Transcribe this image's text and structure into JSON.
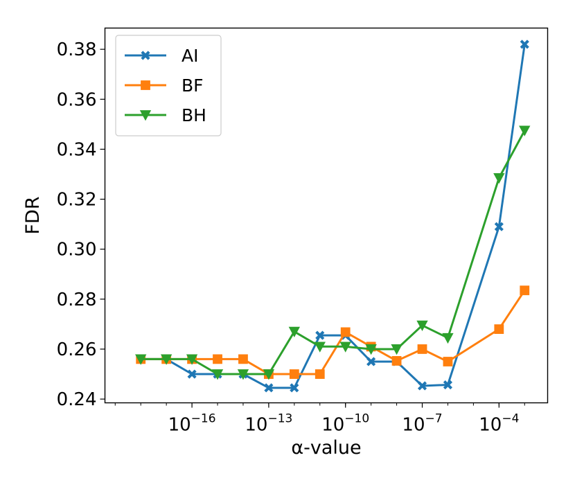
{
  "chart_data": {
    "type": "line",
    "title": "",
    "xlabel": "α-value",
    "ylabel": "FDR",
    "xscale": "log10",
    "xlim_log10": [
      -19.4,
      -2.1
    ],
    "ylim": [
      0.2385,
      0.3885
    ],
    "yticks": [
      0.24,
      0.26,
      0.28,
      0.3,
      0.32,
      0.34,
      0.36,
      0.38
    ],
    "ytick_labels": [
      "0.24",
      "0.26",
      "0.28",
      "0.30",
      "0.32",
      "0.34",
      "0.36",
      "0.38"
    ],
    "xticks": [
      {
        "base": "10",
        "exp": "−16",
        "log10": -16
      },
      {
        "base": "10",
        "exp": "−13",
        "log10": -13
      },
      {
        "base": "10",
        "exp": "−10",
        "log10": -10
      },
      {
        "base": "10",
        "exp": "−7",
        "log10": -7
      },
      {
        "base": "10",
        "exp": "−4",
        "log10": -4
      }
    ],
    "x_log10": [
      -18,
      -17,
      -16,
      -15,
      -14,
      -13,
      -12,
      -11,
      -10,
      -9,
      -8,
      -7,
      -6,
      -4,
      -3
    ],
    "legend_position": "upper-left",
    "series": [
      {
        "name": "AI",
        "color": "#1f77b4",
        "marker": "x",
        "values": [
          0.256,
          0.256,
          0.25,
          0.25,
          0.25,
          0.2445,
          0.2445,
          0.2655,
          0.2655,
          0.255,
          0.255,
          0.2453,
          0.2457,
          0.309,
          0.382
        ]
      },
      {
        "name": "BF",
        "color": "#ff7f0e",
        "marker": "s",
        "values": [
          0.256,
          0.256,
          0.256,
          0.256,
          0.256,
          0.25,
          0.25,
          0.25,
          0.2668,
          0.261,
          0.2553,
          0.26,
          0.255,
          0.268,
          0.2835
        ]
      },
      {
        "name": "BH",
        "color": "#2ca02c",
        "marker": "v",
        "values": [
          0.256,
          0.256,
          0.256,
          0.25,
          0.25,
          0.25,
          0.267,
          0.261,
          0.261,
          0.26,
          0.26,
          0.2695,
          0.2645,
          0.3285,
          0.3475
        ]
      }
    ]
  }
}
